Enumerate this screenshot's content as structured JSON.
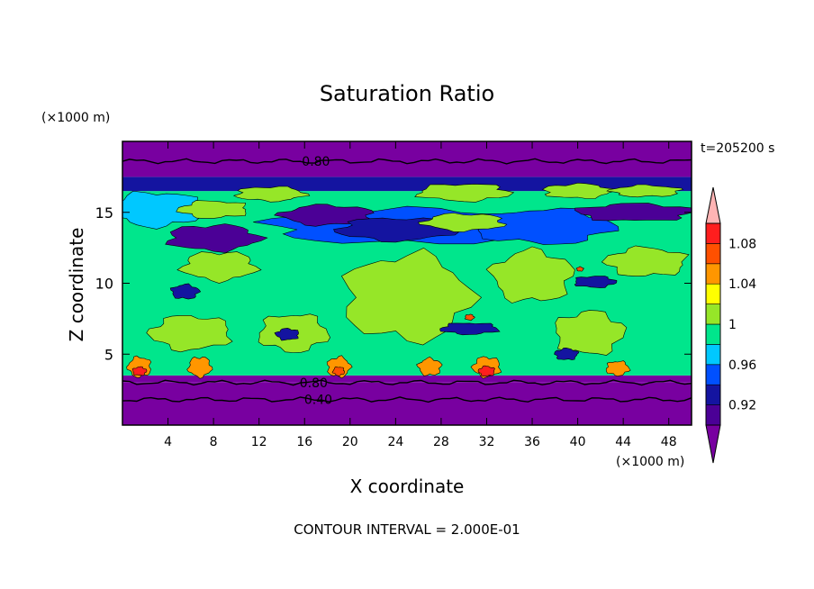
{
  "chart_data": {
    "type": "heatmap",
    "title": "Saturation Ratio",
    "xlabel": "X coordinate",
    "ylabel": "Z coordinate",
    "x_unit": "(×1000 m)",
    "y_unit": "(×1000 m)",
    "time_label": "t=205200 s",
    "footer": "CONTOUR INTERVAL = 2.000E-01",
    "xlim": [
      0,
      50
    ],
    "ylim": [
      0,
      20
    ],
    "x_ticks": [
      4,
      8,
      12,
      16,
      20,
      24,
      28,
      32,
      36,
      40,
      44,
      48
    ],
    "y_ticks": [
      5,
      10,
      15
    ],
    "contour_labels": [
      {
        "text": "0.80",
        "x": 17,
        "y": 18.6
      },
      {
        "text": "0.80",
        "x": 16.8,
        "y": 3.0
      },
      {
        "text": "0.40",
        "x": 17.2,
        "y": 1.8
      }
    ],
    "colorbar": {
      "labels": [
        "1.08",
        "1.04",
        "1",
        "0.96",
        "0.92"
      ],
      "label_levels": [
        1.08,
        1.04,
        1.0,
        0.96,
        0.92
      ],
      "levels": [
        0.9,
        0.92,
        0.94,
        0.96,
        0.98,
        1.0,
        1.02,
        1.04,
        1.06,
        1.08,
        1.1
      ],
      "colors": [
        "#4b0096",
        "#1414a0",
        "#0050ff",
        "#00c8ff",
        "#00e68c",
        "#96e628",
        "#ffff00",
        "#ff9600",
        "#ff5000",
        "#ff1e1e"
      ],
      "under_color": "#7800a0",
      "over_color": "#ffb4b4"
    },
    "bands": [
      {
        "y0": 0,
        "y1": 3.0,
        "value": 0.6
      },
      {
        "y0": 3.0,
        "y1": 3.5,
        "value": 0.85
      },
      {
        "y0": 3.5,
        "y1": 16.5,
        "value": 0.985
      },
      {
        "y0": 16.5,
        "y1": 17.5,
        "value": 0.93
      },
      {
        "y0": 17.5,
        "y1": 20,
        "value": 0.8
      }
    ],
    "features": [
      {
        "cx": 8.5,
        "cy": 11.2,
        "rx": 3.2,
        "ry": 1.0,
        "value": 1.01
      },
      {
        "cx": 25,
        "cy": 9,
        "rx": 5.5,
        "ry": 3.0,
        "value": 1.01
      },
      {
        "cx": 36,
        "cy": 10.5,
        "rx": 3.5,
        "ry": 1.8,
        "value": 1.01
      },
      {
        "cx": 6,
        "cy": 6.5,
        "rx": 3.5,
        "ry": 1.2,
        "value": 1.01
      },
      {
        "cx": 15,
        "cy": 6.5,
        "rx": 3.0,
        "ry": 1.3,
        "value": 1.01
      },
      {
        "cx": 41,
        "cy": 6.5,
        "rx": 3.0,
        "ry": 1.5,
        "value": 1.01
      },
      {
        "cx": 46,
        "cy": 11.5,
        "rx": 3.5,
        "ry": 1.0,
        "value": 1.01
      },
      {
        "cx": 3,
        "cy": 15.2,
        "rx": 4.0,
        "ry": 1.2,
        "value": 0.97
      },
      {
        "cx": 8,
        "cy": 13.2,
        "rx": 4.0,
        "ry": 0.9,
        "value": 0.91
      },
      {
        "cx": 25,
        "cy": 14,
        "rx": 12.0,
        "ry": 1.2,
        "value": 0.95
      },
      {
        "cx": 18,
        "cy": 14.8,
        "rx": 4.0,
        "ry": 0.7,
        "value": 0.91
      },
      {
        "cx": 24,
        "cy": 13.8,
        "rx": 5.0,
        "ry": 0.8,
        "value": 0.92
      },
      {
        "cx": 37,
        "cy": 14,
        "rx": 6.0,
        "ry": 1.2,
        "value": 0.94
      },
      {
        "cx": 45,
        "cy": 15,
        "rx": 5.0,
        "ry": 0.6,
        "value": 0.91
      },
      {
        "cx": 8,
        "cy": 15.2,
        "rx": 3.0,
        "ry": 0.6,
        "value": 1.01
      },
      {
        "cx": 30,
        "cy": 16.4,
        "rx": 4.0,
        "ry": 0.6,
        "value": 1.01
      },
      {
        "cx": 40,
        "cy": 16.5,
        "rx": 3.0,
        "ry": 0.5,
        "value": 1.01
      },
      {
        "cx": 46,
        "cy": 16.5,
        "rx": 3.0,
        "ry": 0.4,
        "value": 1.01
      },
      {
        "cx": 30,
        "cy": 14.3,
        "rx": 3.5,
        "ry": 0.6,
        "value": 1.01
      },
      {
        "cx": 13,
        "cy": 16.3,
        "rx": 3.0,
        "ry": 0.5,
        "value": 1.01
      },
      {
        "cx": 5.5,
        "cy": 9.4,
        "rx": 1.2,
        "ry": 0.5,
        "value": 0.93
      },
      {
        "cx": 14.5,
        "cy": 6.4,
        "rx": 1.0,
        "ry": 0.4,
        "value": 0.93
      },
      {
        "cx": 30.5,
        "cy": 6.8,
        "rx": 2.5,
        "ry": 0.4,
        "value": 0.93
      },
      {
        "cx": 41.5,
        "cy": 10.1,
        "rx": 1.8,
        "ry": 0.4,
        "value": 0.93
      },
      {
        "cx": 39,
        "cy": 5,
        "rx": 1.0,
        "ry": 0.4,
        "value": 0.93
      },
      {
        "cx": 1.5,
        "cy": 4.1,
        "rx": 1.0,
        "ry": 0.7,
        "value": 1.05
      },
      {
        "cx": 6.8,
        "cy": 4.1,
        "rx": 1.0,
        "ry": 0.7,
        "value": 1.05
      },
      {
        "cx": 19,
        "cy": 4.1,
        "rx": 1.0,
        "ry": 0.7,
        "value": 1.05
      },
      {
        "cx": 27,
        "cy": 4.1,
        "rx": 1.0,
        "ry": 0.6,
        "value": 1.05
      },
      {
        "cx": 32,
        "cy": 4.1,
        "rx": 1.2,
        "ry": 0.7,
        "value": 1.05
      },
      {
        "cx": 43.5,
        "cy": 4.0,
        "rx": 1.0,
        "ry": 0.5,
        "value": 1.05
      },
      {
        "cx": 1.5,
        "cy": 3.8,
        "rx": 0.6,
        "ry": 0.3,
        "value": 1.09
      },
      {
        "cx": 32,
        "cy": 3.8,
        "rx": 0.7,
        "ry": 0.35,
        "value": 1.09
      },
      {
        "cx": 19,
        "cy": 3.8,
        "rx": 0.5,
        "ry": 0.3,
        "value": 1.07
      },
      {
        "cx": 30.5,
        "cy": 7.6,
        "rx": 0.4,
        "ry": 0.2,
        "value": 1.07
      },
      {
        "cx": 40.2,
        "cy": 11,
        "rx": 0.3,
        "ry": 0.15,
        "value": 1.07
      }
    ]
  }
}
